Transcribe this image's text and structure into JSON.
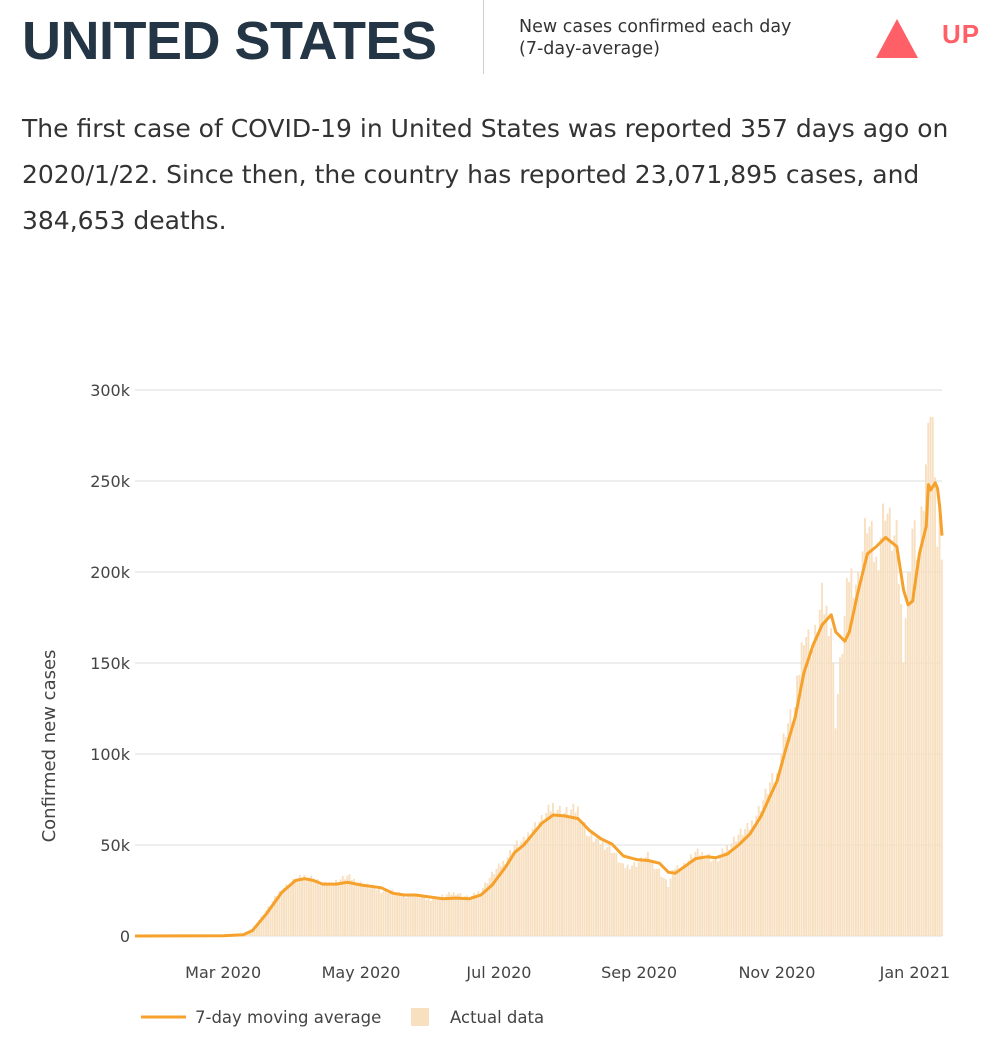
{
  "header": {
    "country": "UNITED STATES",
    "metric_line1": "New cases confirmed each day",
    "metric_line2": "(7-day-average)",
    "trend_label": "UP",
    "trend_icon": "triangle-up-icon",
    "trend_color": "#ff5f67"
  },
  "summary": {
    "text": "The first case of COVID-19 in United States was reported 357 days ago on 2020/1/22. Since then, the country has reported 23,071,895 cases, and 384,653 deaths."
  },
  "colors": {
    "line": "#f5a12c",
    "bars": "#f7dfbf",
    "grid": "#dcdcdc",
    "title": "#243545"
  },
  "chart_data": {
    "type": "line",
    "ylabel": "Confirmed new cases",
    "xlabel": "",
    "ylim": [
      0,
      300000
    ],
    "xlim": [
      "2020-01-22",
      "2021-01-13"
    ],
    "y_ticks": [
      {
        "value": 0,
        "label": "0"
      },
      {
        "value": 50000,
        "label": "50k"
      },
      {
        "value": 100000,
        "label": "100k"
      },
      {
        "value": 150000,
        "label": "150k"
      },
      {
        "value": 200000,
        "label": "200k"
      },
      {
        "value": 250000,
        "label": "250k"
      },
      {
        "value": 300000,
        "label": "300k"
      }
    ],
    "x_ticks": [
      {
        "date": "2020-03-01",
        "label": "Mar 2020"
      },
      {
        "date": "2020-05-01",
        "label": "May 2020"
      },
      {
        "date": "2020-07-01",
        "label": "Jul 2020"
      },
      {
        "date": "2020-09-01",
        "label": "Sep 2020"
      },
      {
        "date": "2020-11-01",
        "label": "Nov 2020"
      },
      {
        "date": "2021-01-01",
        "label": "Jan 2021"
      }
    ],
    "grid": true,
    "legend_position": "bottom-left",
    "series": [
      {
        "name": "7-day moving average",
        "style": "line",
        "points": [
          [
            "2020-01-22",
            0
          ],
          [
            "2020-03-01",
            100
          ],
          [
            "2020-03-10",
            700
          ],
          [
            "2020-03-14",
            3000
          ],
          [
            "2020-03-20",
            12000
          ],
          [
            "2020-03-27",
            24000
          ],
          [
            "2020-04-02",
            30500
          ],
          [
            "2020-04-06",
            31500
          ],
          [
            "2020-04-10",
            30500
          ],
          [
            "2020-04-14",
            28500
          ],
          [
            "2020-04-20",
            28500
          ],
          [
            "2020-04-25",
            29500
          ],
          [
            "2020-05-01",
            28000
          ],
          [
            "2020-05-10",
            26500
          ],
          [
            "2020-05-15",
            23500
          ],
          [
            "2020-05-20",
            22500
          ],
          [
            "2020-05-25",
            22500
          ],
          [
            "2020-05-31",
            21500
          ],
          [
            "2020-06-06",
            20500
          ],
          [
            "2020-06-12",
            20800
          ],
          [
            "2020-06-18",
            20500
          ],
          [
            "2020-06-23",
            22500
          ],
          [
            "2020-06-28",
            28000
          ],
          [
            "2020-07-04",
            38000
          ],
          [
            "2020-07-08",
            46000
          ],
          [
            "2020-07-12",
            50000
          ],
          [
            "2020-07-16",
            56000
          ],
          [
            "2020-07-20",
            62000
          ],
          [
            "2020-07-25",
            66500
          ],
          [
            "2020-07-30",
            66000
          ],
          [
            "2020-08-05",
            64500
          ],
          [
            "2020-08-10",
            58000
          ],
          [
            "2020-08-15",
            53500
          ],
          [
            "2020-08-20",
            50500
          ],
          [
            "2020-08-25",
            44000
          ],
          [
            "2020-08-31",
            42000
          ],
          [
            "2020-09-05",
            41500
          ],
          [
            "2020-09-10",
            40000
          ],
          [
            "2020-09-14",
            35000
          ],
          [
            "2020-09-17",
            34500
          ],
          [
            "2020-09-21",
            38000
          ],
          [
            "2020-09-26",
            42500
          ],
          [
            "2020-10-01",
            43500
          ],
          [
            "2020-10-05",
            43000
          ],
          [
            "2020-10-10",
            45000
          ],
          [
            "2020-10-15",
            50000
          ],
          [
            "2020-10-20",
            56000
          ],
          [
            "2020-10-25",
            66000
          ],
          [
            "2020-10-29",
            77000
          ],
          [
            "2020-11-01",
            85000
          ],
          [
            "2020-11-05",
            103000
          ],
          [
            "2020-11-09",
            120000
          ],
          [
            "2020-11-13",
            145000
          ],
          [
            "2020-11-17",
            160000
          ],
          [
            "2020-11-21",
            171000
          ],
          [
            "2020-11-25",
            176500
          ],
          [
            "2020-11-27",
            167000
          ],
          [
            "2020-12-01",
            162000
          ],
          [
            "2020-12-03",
            167000
          ],
          [
            "2020-12-07",
            190000
          ],
          [
            "2020-12-11",
            210000
          ],
          [
            "2020-12-15",
            214000
          ],
          [
            "2020-12-19",
            219000
          ],
          [
            "2020-12-22",
            216000
          ],
          [
            "2020-12-24",
            214000
          ],
          [
            "2020-12-27",
            190000
          ],
          [
            "2020-12-29",
            182000
          ],
          [
            "2020-12-31",
            184000
          ],
          [
            "2021-01-03",
            210000
          ],
          [
            "2021-01-06",
            225000
          ],
          [
            "2021-01-07",
            248000
          ],
          [
            "2021-01-08",
            245000
          ],
          [
            "2021-01-10",
            249000
          ],
          [
            "2021-01-11",
            246000
          ],
          [
            "2021-01-12",
            236000
          ],
          [
            "2021-01-13",
            220000
          ]
        ]
      },
      {
        "name": "Actual data",
        "style": "bars",
        "points": [
          [
            "2020-01-22",
            0
          ],
          [
            "2020-03-01",
            200
          ],
          [
            "2020-03-10",
            1000
          ],
          [
            "2020-03-14",
            3500
          ],
          [
            "2020-03-20",
            14000
          ],
          [
            "2020-03-27",
            26000
          ],
          [
            "2020-04-02",
            31000
          ],
          [
            "2020-04-06",
            33000
          ],
          [
            "2020-04-10",
            32000
          ],
          [
            "2020-04-14",
            28000
          ],
          [
            "2020-04-20",
            30000
          ],
          [
            "2020-04-25",
            33000
          ],
          [
            "2020-05-01",
            29000
          ],
          [
            "2020-05-10",
            25000
          ],
          [
            "2020-05-15",
            24500
          ],
          [
            "2020-05-20",
            22000
          ],
          [
            "2020-05-25",
            23000
          ],
          [
            "2020-05-31",
            20000
          ],
          [
            "2020-06-06",
            22000
          ],
          [
            "2020-06-12",
            24000
          ],
          [
            "2020-06-18",
            21000
          ],
          [
            "2020-06-23",
            25000
          ],
          [
            "2020-06-28",
            34000
          ],
          [
            "2020-07-04",
            42000
          ],
          [
            "2020-07-08",
            50000
          ],
          [
            "2020-07-12",
            52000
          ],
          [
            "2020-07-16",
            60000
          ],
          [
            "2020-07-20",
            64000
          ],
          [
            "2020-07-25",
            72000
          ],
          [
            "2020-07-30",
            68000
          ],
          [
            "2020-08-05",
            70000
          ],
          [
            "2020-08-10",
            55000
          ],
          [
            "2020-08-15",
            52000
          ],
          [
            "2020-08-20",
            48000
          ],
          [
            "2020-08-25",
            38000
          ],
          [
            "2020-08-31",
            40000
          ],
          [
            "2020-09-05",
            44000
          ],
          [
            "2020-09-10",
            36000
          ],
          [
            "2020-09-14",
            28000
          ],
          [
            "2020-09-17",
            38000
          ],
          [
            "2020-09-21",
            39000
          ],
          [
            "2020-09-26",
            46000
          ],
          [
            "2020-10-01",
            45000
          ],
          [
            "2020-10-05",
            41000
          ],
          [
            "2020-10-10",
            49000
          ],
          [
            "2020-10-15",
            56000
          ],
          [
            "2020-10-20",
            60000
          ],
          [
            "2020-10-25",
            72000
          ],
          [
            "2020-10-29",
            84000
          ],
          [
            "2020-11-01",
            88000
          ],
          [
            "2020-11-05",
            115000
          ],
          [
            "2020-11-09",
            125000
          ],
          [
            "2020-11-13",
            170000
          ],
          [
            "2020-11-17",
            158000
          ],
          [
            "2020-11-21",
            185000
          ],
          [
            "2020-11-25",
            172000
          ],
          [
            "2020-11-27",
            120000
          ],
          [
            "2020-12-01",
            175000
          ],
          [
            "2020-12-03",
            200000
          ],
          [
            "2020-12-07",
            195000
          ],
          [
            "2020-12-11",
            230000
          ],
          [
            "2020-12-15",
            205000
          ],
          [
            "2020-12-19",
            240000
          ],
          [
            "2020-12-22",
            220000
          ],
          [
            "2020-12-24",
            218000
          ],
          [
            "2020-12-27",
            160000
          ],
          [
            "2020-12-29",
            195000
          ],
          [
            "2020-12-31",
            225000
          ],
          [
            "2021-01-03",
            210000
          ],
          [
            "2021-01-06",
            255000
          ],
          [
            "2021-01-07",
            300000
          ],
          [
            "2021-01-08",
            290000
          ],
          [
            "2021-01-10",
            265000
          ],
          [
            "2021-01-11",
            215000
          ],
          [
            "2021-01-12",
            225000
          ],
          [
            "2021-01-13",
            215000
          ]
        ]
      }
    ],
    "legend": [
      {
        "label": "7-day moving average",
        "marker": "line"
      },
      {
        "label": "Actual data",
        "marker": "square"
      }
    ]
  }
}
